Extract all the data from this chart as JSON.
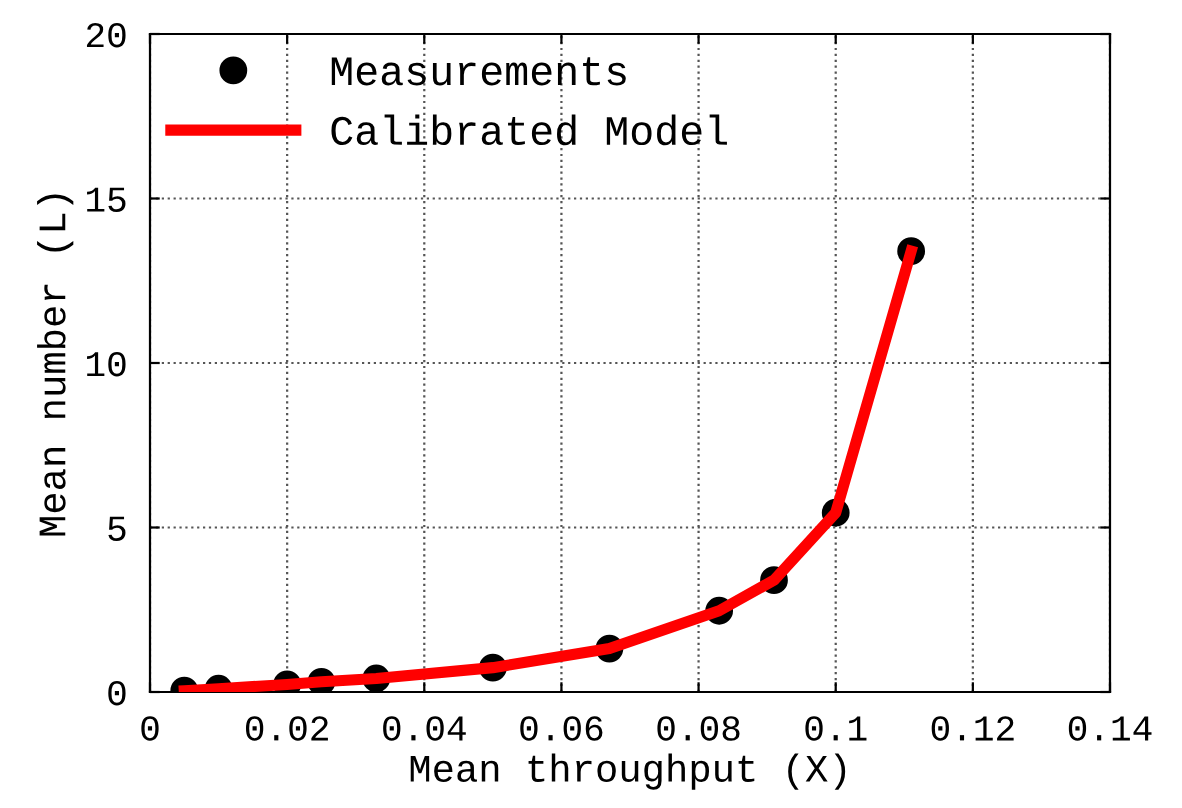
{
  "chart_data": {
    "type": "scatter",
    "xlabel": "Mean throughput (X)",
    "ylabel": "Mean number (L)",
    "xlim": [
      0,
      0.14
    ],
    "ylim": [
      0,
      20
    ],
    "xticks": [
      0,
      0.02,
      0.04,
      0.06,
      0.08,
      {
        "value": 0.1,
        "label": "0.1"
      },
      0.12,
      0.14
    ],
    "yticks": [
      0,
      5,
      10,
      15,
      20
    ],
    "grid": true,
    "legend": "top left",
    "series": [
      {
        "name": "Measurements",
        "color": "#000000",
        "marker": "circle",
        "x": [
          0.005,
          0.01,
          0.02,
          0.025,
          0.033,
          0.05,
          0.067,
          0.083,
          0.091,
          0.1,
          0.111
        ],
        "values": [
          0.04,
          0.1,
          0.23,
          0.31,
          0.41,
          0.74,
          1.32,
          2.47,
          3.4,
          5.45,
          13.4
        ]
      },
      {
        "name": "Calibrated Model",
        "type": "line",
        "color": "#ff0000",
        "line_style": "solid",
        "x": [
          0.005,
          0.01,
          0.02,
          0.025,
          0.033,
          0.05,
          0.067,
          0.083,
          0.091,
          0.1,
          0.111
        ],
        "values": [
          0.04,
          0.1,
          0.23,
          0.31,
          0.41,
          0.74,
          1.32,
          2.47,
          3.4,
          5.45,
          13.4
        ]
      }
    ]
  }
}
